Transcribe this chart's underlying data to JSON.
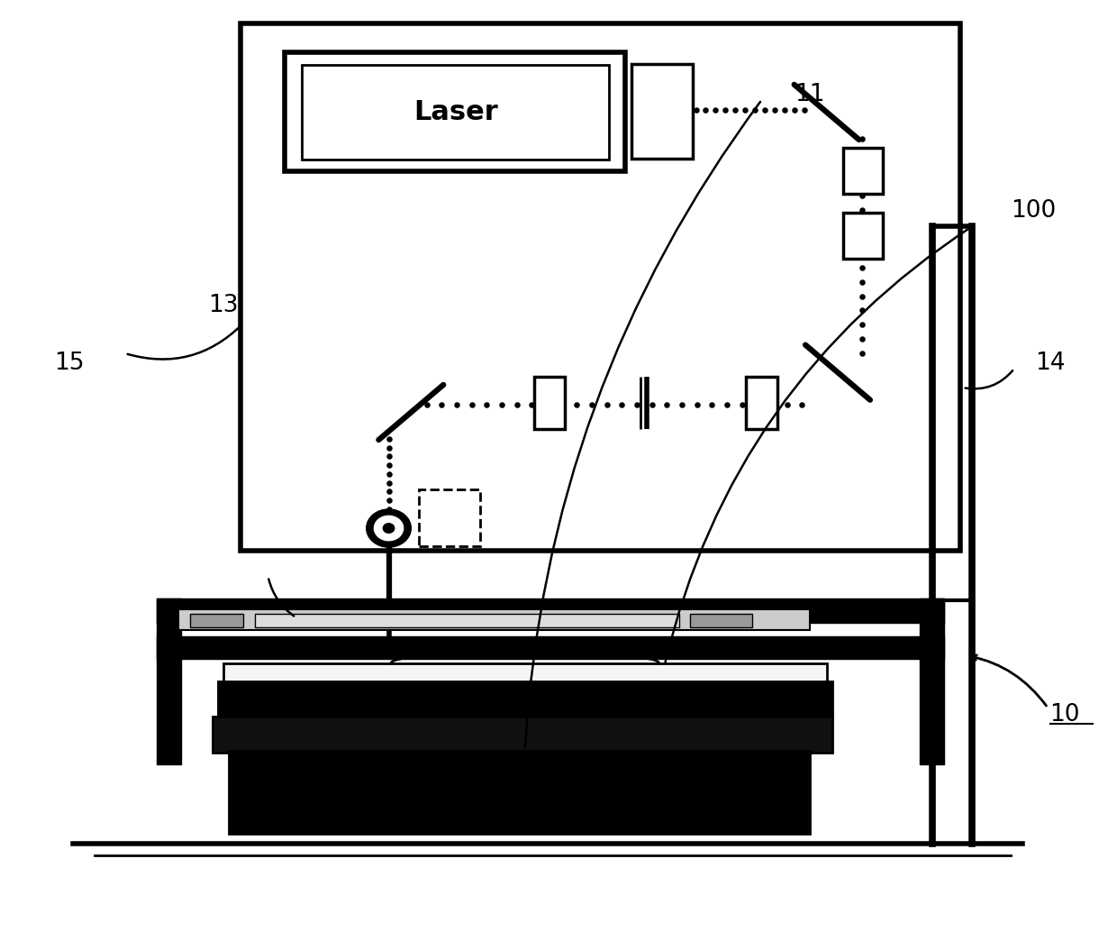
{
  "bg_color": "#ffffff",
  "line_color": "#000000",
  "fig_width": 12.4,
  "fig_height": 10.54,
  "laser_text": "Laser",
  "labels": [
    "10",
    "11",
    "13",
    "14",
    "15",
    "100"
  ]
}
